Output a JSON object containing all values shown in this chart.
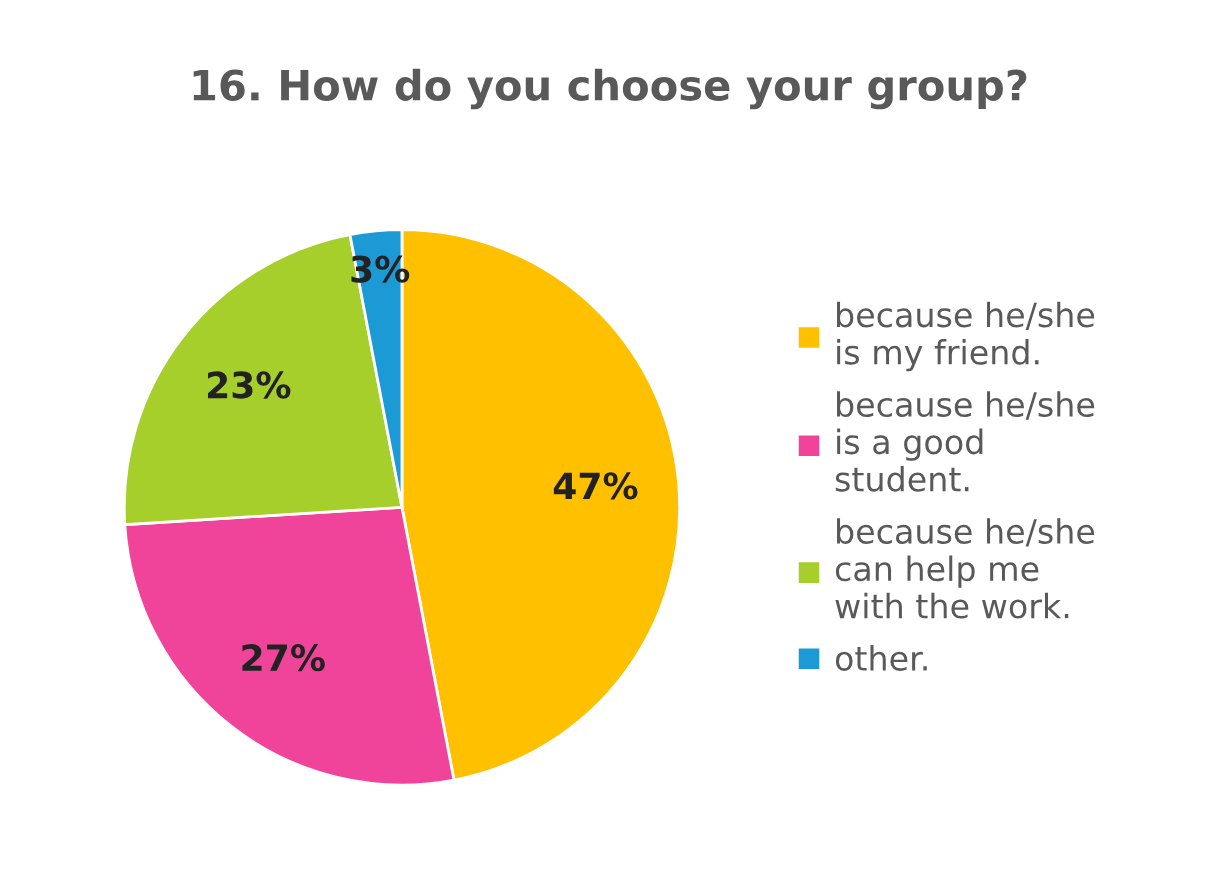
{
  "chart_data": {
    "type": "pie",
    "title": "16. How do you choose your group?",
    "categories": [
      "because he/she is my friend.",
      "because he/she is a good student.",
      "because he/she can help me with the work.",
      "other."
    ],
    "values": [
      47,
      27,
      23,
      3
    ],
    "colors": [
      "#ffc000",
      "#f0449a",
      "#a6cf2c",
      "#1b9ad6"
    ],
    "value_labels": [
      "47%",
      "27%",
      "23%",
      "3%"
    ],
    "legend": "right"
  }
}
